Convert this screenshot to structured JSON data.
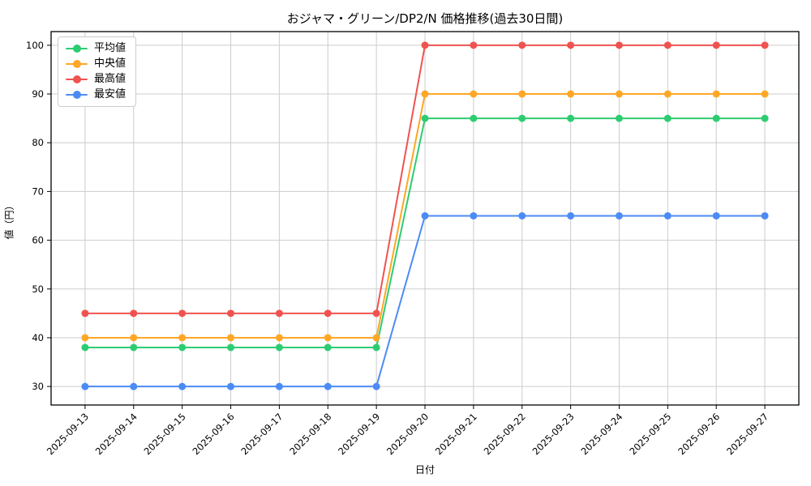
{
  "chart_data": {
    "type": "line",
    "title": "おジャマ・グリーン/DP2/N 価格推移(過去30日間)",
    "xlabel": "日付",
    "ylabel": "値（円）",
    "x": [
      "2025-09-13",
      "2025-09-14",
      "2025-09-15",
      "2025-09-16",
      "2025-09-17",
      "2025-09-18",
      "2025-09-19",
      "2025-09-20",
      "2025-09-21",
      "2025-09-22",
      "2025-09-23",
      "2025-09-24",
      "2025-09-25",
      "2025-09-26",
      "2025-09-27"
    ],
    "series": [
      {
        "key": "average",
        "name": "平均値",
        "color": "#2ecc71",
        "values": [
          38,
          38,
          38,
          38,
          38,
          38,
          38,
          85,
          85,
          85,
          85,
          85,
          85,
          85,
          85
        ]
      },
      {
        "key": "median",
        "name": "中央値",
        "color": "#ffa726",
        "values": [
          40,
          40,
          40,
          40,
          40,
          40,
          40,
          90,
          90,
          90,
          90,
          90,
          90,
          90,
          90
        ]
      },
      {
        "key": "max",
        "name": "最高値",
        "color": "#ef5350",
        "values": [
          45,
          45,
          45,
          45,
          45,
          45,
          45,
          100,
          100,
          100,
          100,
          100,
          100,
          100,
          100
        ]
      },
      {
        "key": "min",
        "name": "最安値",
        "color": "#4c8bf5",
        "values": [
          30,
          30,
          30,
          30,
          30,
          30,
          30,
          65,
          65,
          65,
          65,
          65,
          65,
          65,
          65
        ]
      }
    ],
    "yticks": [
      30,
      40,
      50,
      60,
      70,
      80,
      90,
      100
    ],
    "ylim": [
      26.2,
      102.8
    ],
    "grid": true,
    "grid_color": "#cccccc",
    "axis_color": "#000000",
    "background": "#ffffff",
    "legend_position": "upper-left",
    "x_tick_rotation_deg": 45
  }
}
